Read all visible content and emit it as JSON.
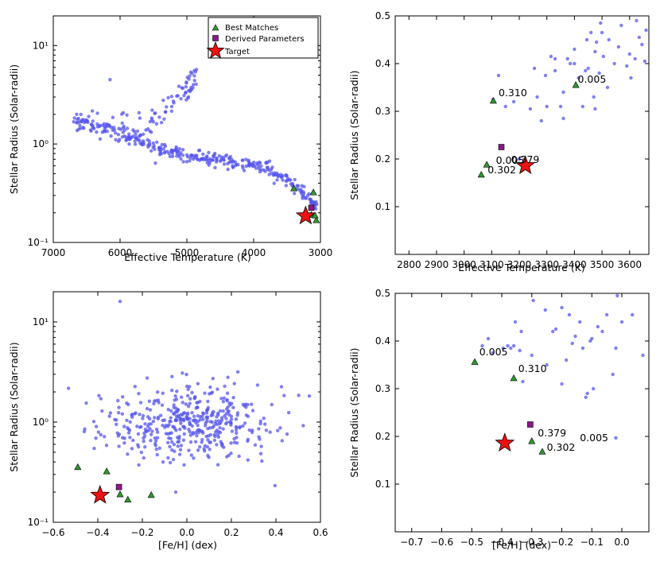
{
  "colors": {
    "background_points": "#5555ee",
    "best_matches": "#2f9a2f",
    "derived": "#8a1a8a",
    "target": "#ee1111"
  },
  "legend": {
    "placement": "top-right of top-left panel",
    "entries": [
      "Best Matches",
      "Derived Parameters",
      "Target"
    ]
  },
  "chart_data": [
    {
      "id": "teff-radius-full",
      "type": "scatter",
      "title": "",
      "xlabel": "Effective Temperature (K)",
      "ylabel": "Stellar Radius (Solar-radii)",
      "xlim": [
        7000,
        3000
      ],
      "ylim": [
        0.1,
        20
      ],
      "yscale": "log",
      "xticks": [
        7000,
        6000,
        5000,
        4000,
        3000
      ],
      "xtick_labels": [
        "7000",
        "6000",
        "5000",
        "4000",
        "3000"
      ],
      "yticks": [
        0.1,
        1,
        10
      ],
      "ytick_labels": [
        "10⁻¹",
        "10⁰",
        "10¹"
      ],
      "show_legend": true,
      "background": {
        "generator": "hr",
        "count": 420
      },
      "best_matches": [
        [
          3398,
          0.354
        ],
        [
          3106,
          0.322
        ],
        [
          3135,
          0.19
        ],
        [
          3062,
          0.168
        ],
        [
          3082,
          0.188
        ]
      ],
      "derived": [
        [
          3137,
          0.225
        ]
      ],
      "target": [
        [
          3222,
          0.186
        ]
      ],
      "annotations": []
    },
    {
      "id": "teff-radius-zoom",
      "type": "scatter",
      "title": "",
      "xlabel": "Effective Temperature (K)",
      "ylabel": "Stellar Radius (Solar-radii)",
      "xlim": [
        2750,
        3670
      ],
      "ylim": [
        0.0,
        0.5
      ],
      "yscale": "linear",
      "xticks": [
        2800,
        2900,
        3000,
        3100,
        3200,
        3300,
        3400,
        3500,
        3600
      ],
      "xtick_labels": [
        "2800",
        "2900",
        "3000",
        "3100",
        "3200",
        "3300",
        "3400",
        "3500",
        "3600"
      ],
      "yticks": [
        0.1,
        0.2,
        0.3,
        0.4,
        0.5
      ],
      "ytick_labels": [
        "0.1",
        "0.2",
        "0.3",
        "0.4",
        "0.5"
      ],
      "show_legend": false,
      "background": {
        "generator": "zoom-teff",
        "count": 0
      },
      "background_points": [
        [
          3105,
          0.325
        ],
        [
          3125,
          0.375
        ],
        [
          3150,
          0.31
        ],
        [
          3240,
          0.305
        ],
        [
          3265,
          0.33
        ],
        [
          3295,
          0.375
        ],
        [
          3300,
          0.31
        ],
        [
          3315,
          0.415
        ],
        [
          3330,
          0.41
        ],
        [
          3350,
          0.31
        ],
        [
          3360,
          0.285
        ],
        [
          3375,
          0.41
        ],
        [
          3385,
          0.4
        ],
        [
          3400,
          0.4
        ],
        [
          3415,
          0.37
        ],
        [
          3430,
          0.31
        ],
        [
          3440,
          0.385
        ],
        [
          3445,
          0.45
        ],
        [
          3460,
          0.465
        ],
        [
          3470,
          0.33
        ],
        [
          3475,
          0.425
        ],
        [
          3480,
          0.445
        ],
        [
          3490,
          0.38
        ],
        [
          3500,
          0.465
        ],
        [
          3505,
          0.415
        ],
        [
          3525,
          0.45
        ],
        [
          3545,
          0.4
        ],
        [
          3560,
          0.435
        ],
        [
          3570,
          0.48
        ],
        [
          3590,
          0.395
        ],
        [
          3600,
          0.42
        ],
        [
          3620,
          0.41
        ],
        [
          3635,
          0.455
        ],
        [
          3645,
          0.44
        ],
        [
          3660,
          0.47
        ],
        [
          3495,
          0.485
        ],
        [
          3400,
          0.43
        ],
        [
          3330,
          0.385
        ],
        [
          3520,
          0.35
        ],
        [
          3280,
          0.28
        ],
        [
          3180,
          0.32
        ],
        [
          3200,
          0.2
        ],
        [
          3360,
          0.34
        ],
        [
          3255,
          0.39
        ],
        [
          3450,
          0.39
        ],
        [
          3605,
          0.37
        ],
        [
          3625,
          0.49
        ],
        [
          3475,
          0.305
        ],
        [
          3655,
          0.405
        ]
      ],
      "best_matches": [
        [
          3106,
          0.322
        ],
        [
          3405,
          0.355
        ],
        [
          3082,
          0.188
        ],
        [
          3062,
          0.167
        ]
      ],
      "derived": [
        [
          3135,
          0.225
        ]
      ],
      "target": [
        [
          3222,
          0.186
        ]
      ],
      "annotations": [
        {
          "text": "0.310",
          "x": 3125,
          "y": 0.332
        },
        {
          "text": "0.005",
          "x": 3412,
          "y": 0.36
        },
        {
          "text": "0.005",
          "x": 3115,
          "y": 0.19
        },
        {
          "text": "0.379",
          "x": 3170,
          "y": 0.192
        },
        {
          "text": "0.302",
          "x": 3085,
          "y": 0.17
        }
      ]
    },
    {
      "id": "feh-radius-full",
      "type": "scatter",
      "title": "",
      "xlabel": "[Fe/H] (dex)",
      "ylabel": "Stellar Radius (Solar-radii)",
      "xlim": [
        -0.6,
        0.6
      ],
      "ylim": [
        0.1,
        20
      ],
      "yscale": "log",
      "xticks": [
        -0.6,
        -0.4,
        -0.2,
        0.0,
        0.2,
        0.4,
        0.6
      ],
      "xtick_labels": [
        "−0.6",
        "−0.4",
        "−0.2",
        "0.0",
        "0.2",
        "0.4",
        "0.6"
      ],
      "yticks": [
        0.1,
        1,
        10
      ],
      "ytick_labels": [
        "10⁻¹",
        "10⁰",
        "10¹"
      ],
      "show_legend": false,
      "background": {
        "generator": "feh",
        "count": 430
      },
      "best_matches": [
        [
          -0.49,
          0.355
        ],
        [
          -0.36,
          0.322
        ],
        [
          -0.3,
          0.19
        ],
        [
          -0.265,
          0.168
        ],
        [
          -0.16,
          0.187
        ]
      ],
      "derived": [
        [
          -0.305,
          0.225
        ]
      ],
      "target": [
        [
          -0.39,
          0.186
        ]
      ],
      "annotations": []
    },
    {
      "id": "feh-radius-zoom",
      "type": "scatter",
      "title": "",
      "xlabel": "[Fe/H] (dex)",
      "ylabel": "Stellar Radius (Solar-radii)",
      "xlim": [
        -0.755,
        0.09
      ],
      "ylim": [
        0.0,
        0.5
      ],
      "yscale": "linear",
      "xticks": [
        -0.7,
        -0.6,
        -0.5,
        -0.4,
        -0.3,
        -0.2,
        -0.1,
        0.0
      ],
      "xtick_labels": [
        "−0.7",
        "−0.6",
        "−0.5",
        "−0.4",
        "−0.3",
        "−0.2",
        "−0.1",
        "0.0"
      ],
      "yticks": [
        0.1,
        0.2,
        0.3,
        0.4,
        0.5
      ],
      "ytick_labels": [
        "0.1",
        "0.2",
        "0.3",
        "0.4",
        "0.5"
      ],
      "show_legend": false,
      "background": {
        "generator": "zoom-feh",
        "count": 0
      },
      "background_points": [
        [
          -0.465,
          0.39
        ],
        [
          -0.445,
          0.405
        ],
        [
          -0.43,
          0.375
        ],
        [
          -0.395,
          0.385
        ],
        [
          -0.38,
          0.39
        ],
        [
          -0.37,
          0.385
        ],
        [
          -0.36,
          0.39
        ],
        [
          -0.355,
          0.44
        ],
        [
          -0.34,
          0.38
        ],
        [
          -0.335,
          0.42
        ],
        [
          -0.33,
          0.315
        ],
        [
          -0.295,
          0.485
        ],
        [
          -0.255,
          0.465
        ],
        [
          -0.23,
          0.42
        ],
        [
          -0.22,
          0.425
        ],
        [
          -0.2,
          0.47
        ],
        [
          -0.185,
          0.36
        ],
        [
          -0.175,
          0.455
        ],
        [
          -0.165,
          0.395
        ],
        [
          -0.155,
          0.41
        ],
        [
          -0.14,
          0.44
        ],
        [
          -0.13,
          0.385
        ],
        [
          -0.115,
          0.29
        ],
        [
          -0.105,
          0.4
        ],
        [
          -0.095,
          0.3
        ],
        [
          -0.08,
          0.43
        ],
        [
          -0.065,
          0.42
        ],
        [
          -0.05,
          0.455
        ],
        [
          -0.03,
          0.33
        ],
        [
          -0.02,
          0.385
        ],
        [
          -0.015,
          0.495
        ],
        [
          0.0,
          0.44
        ],
        [
          0.035,
          0.455
        ],
        [
          0.07,
          0.37
        ],
        [
          -0.12,
          0.282
        ],
        [
          -0.2,
          0.31
        ],
        [
          -0.25,
          0.35
        ],
        [
          -0.02,
          0.197
        ],
        [
          -0.1,
          0.405
        ],
        [
          -0.3,
          0.37
        ]
      ],
      "best_matches": [
        [
          -0.49,
          0.356
        ],
        [
          -0.36,
          0.322
        ],
        [
          -0.3,
          0.19
        ],
        [
          -0.265,
          0.168
        ]
      ],
      "derived": [
        [
          -0.305,
          0.225
        ]
      ],
      "target": [
        [
          -0.39,
          0.186
        ]
      ],
      "annotations": [
        {
          "text": "0.005",
          "x": -0.475,
          "y": 0.37
        },
        {
          "text": "0.310",
          "x": -0.345,
          "y": 0.335
        },
        {
          "text": "0.379",
          "x": -0.28,
          "y": 0.2
        },
        {
          "text": "0.302",
          "x": -0.25,
          "y": 0.17
        },
        {
          "text": "0.005",
          "x": -0.14,
          "y": 0.19
        }
      ]
    }
  ]
}
